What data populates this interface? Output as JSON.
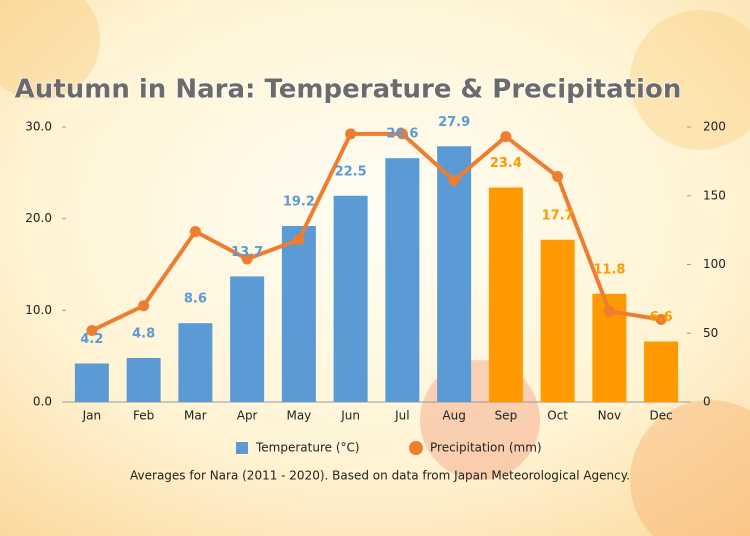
{
  "chart_data": {
    "type": "bar-line",
    "title": "Autumn in Nara: Temperature & Precipitation",
    "note": "Averages for Nara (2011 - 2020). Based on data from Japan Meteorological Agency.",
    "categories": [
      "Jan",
      "Feb",
      "Mar",
      "Apr",
      "May",
      "Jun",
      "Jul",
      "Aug",
      "Sep",
      "Oct",
      "Nov",
      "Dec"
    ],
    "series": [
      {
        "name": "Temperature (°C)",
        "color": "#5b9bd5",
        "colors": [
          "#5b9bd5",
          "#5b9bd5",
          "#5b9bd5",
          "#5b9bd5",
          "#5b9bd5",
          "#5b9bd5",
          "#5b9bd5",
          "#5b9bd5",
          "#ff9900",
          "#ff9900",
          "#ff9900",
          "#ff9900"
        ],
        "values": [
          4.2,
          4.8,
          8.6,
          13.7,
          19.2,
          22.5,
          26.6,
          27.9,
          23.4,
          17.7,
          11.8,
          6.6
        ]
      },
      {
        "name": "Precipitation (mm)",
        "color": "#ed7d31",
        "axis": "y2",
        "values": [
          52,
          70,
          124,
          104,
          118,
          195,
          195,
          161,
          193,
          164,
          66,
          60
        ]
      }
    ],
    "ylim": [
      0,
      30
    ],
    "yticks": [
      {
        "value": 0,
        "label": "0.0"
      },
      {
        "value": 10,
        "label": "10.0"
      },
      {
        "value": 20,
        "label": "20.0"
      },
      {
        "value": 30,
        "label": "30.0"
      }
    ],
    "y2lim": [
      0,
      200
    ],
    "y2ticks": [
      0,
      50,
      100,
      150,
      200
    ],
    "grid": false
  }
}
